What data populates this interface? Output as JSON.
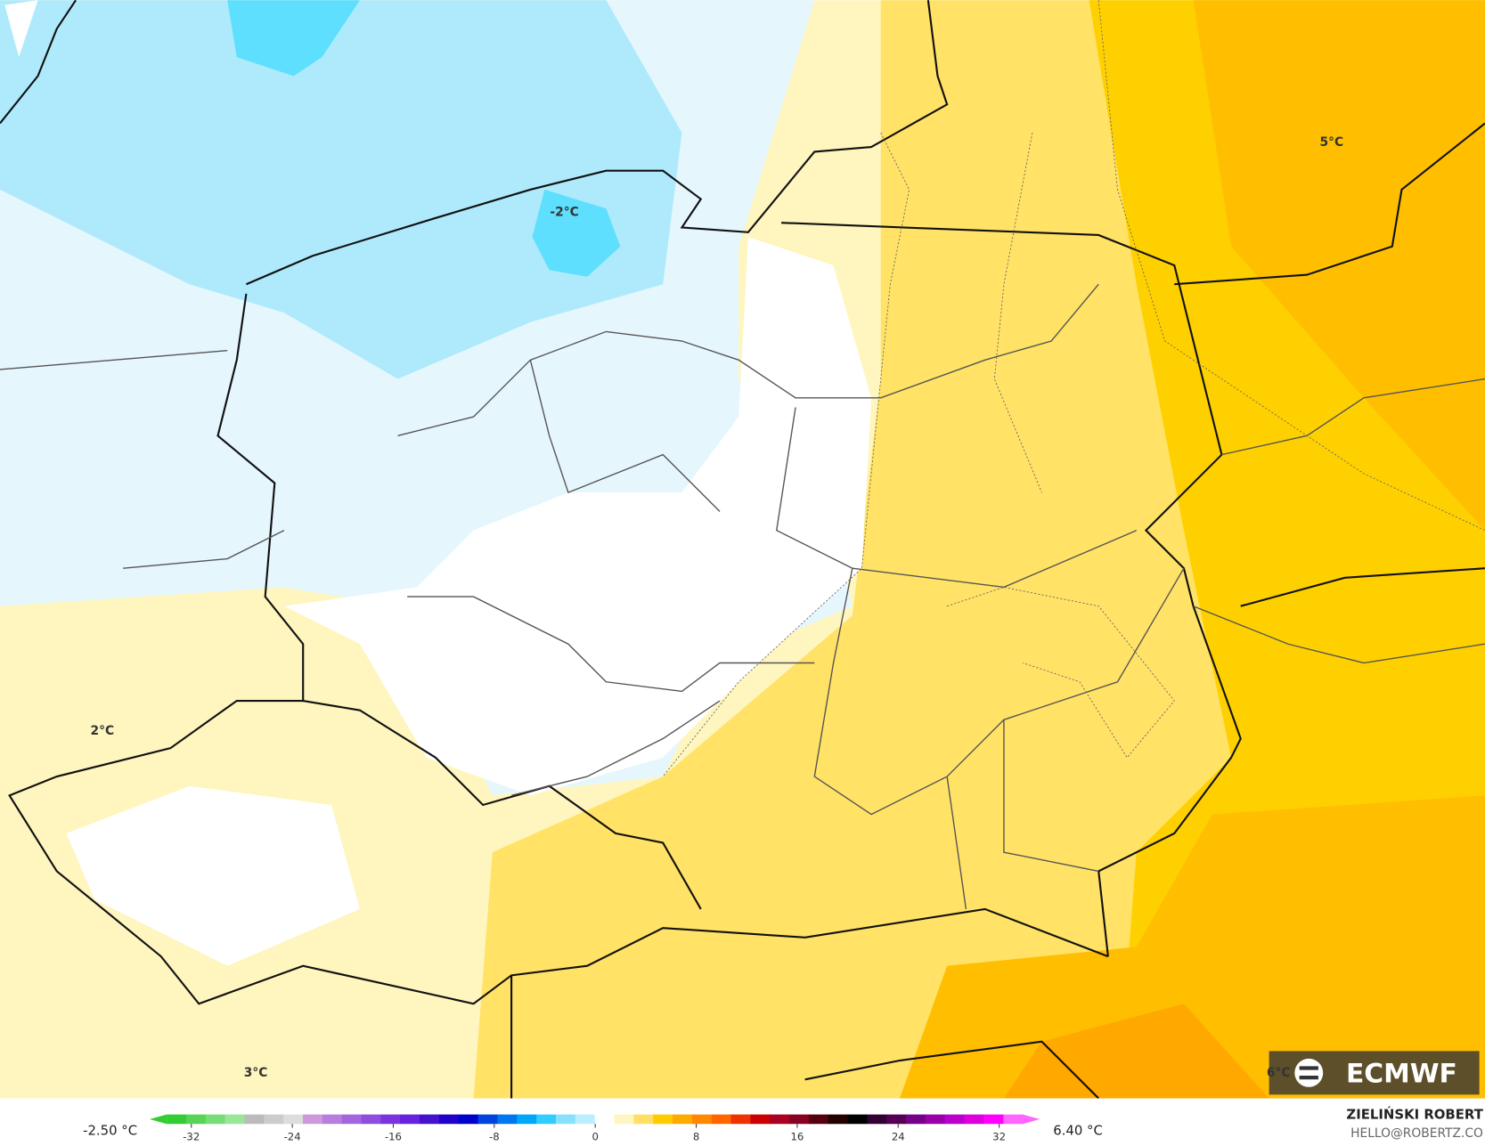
{
  "map_labels": [
    "-2°C",
    "5°C",
    "2°C",
    "3°C",
    "6°C"
  ],
  "colorbar": {
    "min_label": "-2.50 °C",
    "max_label": "6.40 °C",
    "ticks": [
      -32,
      -24,
      -16,
      -8,
      0,
      8,
      16,
      24,
      32
    ],
    "colors": [
      "#33cc33",
      "#55d455",
      "#77dd77",
      "#99e699",
      "#bbbbbb",
      "#cccccc",
      "#dddddd",
      "#cc99dd",
      "#b77fdd",
      "#a366dd",
      "#8f4ddd",
      "#7a33dd",
      "#6622dd",
      "#4411cc",
      "#2200cc",
      "#0000cc",
      "#0044dd",
      "#0077ee",
      "#00a8f5",
      "#33ccff",
      "#88e0ff",
      "#bbeeff",
      "#ffffff",
      "#fff5c0",
      "#ffe066",
      "#ffcc00",
      "#ffaa00",
      "#ff8800",
      "#ff6600",
      "#ee3300",
      "#cc0000",
      "#aa0022",
      "#880022",
      "#550011",
      "#220000",
      "#000000",
      "#330033",
      "#550055",
      "#770088",
      "#9900aa",
      "#bb00cc",
      "#dd00dd",
      "#ff00ff",
      "#ff66ff"
    ]
  },
  "credit": {
    "name": "ZIELIŃSKI ROBERT",
    "email": "HELLO@ROBERTZ.CO"
  },
  "logo": "ECMWF"
}
